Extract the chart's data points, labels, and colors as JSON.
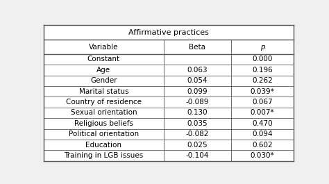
{
  "title": "Affirmative practices",
  "col_headers": [
    "Variable",
    "Beta",
    "p"
  ],
  "rows": [
    [
      "Constant",
      "",
      "0.000"
    ],
    [
      "Age",
      "0.063",
      "0.196"
    ],
    [
      "Gender",
      "0.054",
      "0.262"
    ],
    [
      "Marital status",
      "0.099",
      "0.039*"
    ],
    [
      "Country of residence",
      "-0.089",
      "0.067"
    ],
    [
      "Sexual orientation",
      "0.130",
      "0.007*"
    ],
    [
      "Religious beliefs",
      "0.035",
      "0.470"
    ],
    [
      "Political orientation",
      "-0.082",
      "0.094"
    ],
    [
      "Education",
      "0.025",
      "0.602"
    ],
    [
      "Training in LGB issues",
      "-0.104",
      "0.030*"
    ]
  ],
  "bg_color": "#f0f0f0",
  "cell_bg": "#ffffff",
  "border_color": "#555555",
  "text_color": "#000000",
  "font_size": 7.5,
  "title_font_size": 8.0,
  "figsize": [
    4.74,
    2.65
  ],
  "dpi": 100
}
